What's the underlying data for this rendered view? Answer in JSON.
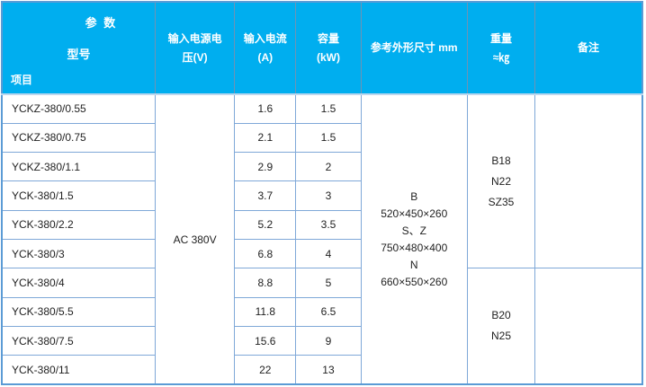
{
  "colors": {
    "header_bg": "#00AEEF",
    "header_text": "#FFFFFF",
    "outer_border": "#5B9BD5",
    "inner_border": "#7FA8D8",
    "body_text": "#1F1F1F"
  },
  "header": {
    "corner": {
      "param_label": "参  数",
      "model_label": "型号",
      "item_label": "项目"
    },
    "columns": {
      "voltage": {
        "lines": [
          "输入电源电",
          "压(V)"
        ]
      },
      "current": {
        "lines": [
          "输入电流",
          "(A)"
        ]
      },
      "capacity": {
        "lines": [
          "容量",
          "(kW)"
        ]
      },
      "dimensions": {
        "lines": [
          "参考外形尺寸 mm"
        ]
      },
      "weight": {
        "lines": [
          "重量",
          "≈㎏"
        ]
      },
      "remarks": {
        "lines": [
          "备注"
        ]
      }
    }
  },
  "rows": [
    {
      "model": "YCKZ-380/0.55",
      "current": "1.6",
      "capacity": "1.5"
    },
    {
      "model": "YCKZ-380/0.75",
      "current": "2.1",
      "capacity": "1.5"
    },
    {
      "model": "YCKZ-380/1.1",
      "current": "2.9",
      "capacity": "2"
    },
    {
      "model": "YCK-380/1.5",
      "current": "3.7",
      "capacity": "3"
    },
    {
      "model": "YCK-380/2.2",
      "current": "5.2",
      "capacity": "3.5"
    },
    {
      "model": "YCK-380/3",
      "current": "6.8",
      "capacity": "4"
    },
    {
      "model": "YCK-380/4",
      "current": "8.8",
      "capacity": "5"
    },
    {
      "model": "YCK-380/5.5",
      "current": "11.8",
      "capacity": "6.5"
    },
    {
      "model": "YCK-380/7.5",
      "current": "15.6",
      "capacity": "9"
    },
    {
      "model": "YCK-380/11",
      "current": "22",
      "capacity": "13"
    }
  ],
  "merged": {
    "voltage": "AC 380V",
    "dimensions_lines": [
      "B",
      "520×450×260",
      "S、Z",
      "750×480×400",
      "N",
      "660×550×260"
    ],
    "weight_top_lines": [
      "B18",
      "N22",
      "SZ35"
    ],
    "weight_bottom_lines": [
      "B20",
      "N25"
    ],
    "remarks_top": "",
    "remarks_bottom": ""
  }
}
